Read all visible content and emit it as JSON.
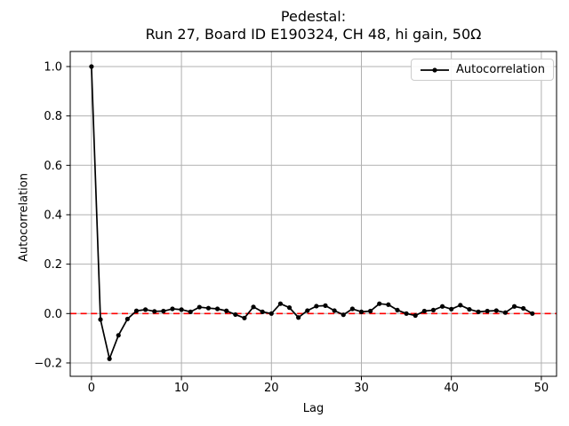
{
  "title": {
    "line1": "Pedestal:",
    "line2": "Run 27, Board ID E190324, CH 48, hi gain, 50Ω"
  },
  "legend": {
    "label": "Autocorrelation",
    "position": "upper right"
  },
  "chart_data": {
    "type": "line",
    "title": "Pedestal:\nRun 27, Board ID E190324, CH 48, hi gain, 50Ω",
    "xlabel": "Lag",
    "ylabel": "Autocorrelation",
    "grid": true,
    "xlim": [
      -2.36,
      51.69
    ],
    "ylim": [
      -0.254,
      1.061
    ],
    "xticks": {
      "values": [
        0,
        10,
        20,
        30,
        40,
        50
      ],
      "labels": [
        "0",
        "10",
        "20",
        "30",
        "40",
        "50"
      ]
    },
    "yticks": {
      "values": [
        -0.2,
        0.0,
        0.2,
        0.4,
        0.6,
        0.8,
        1.0
      ],
      "labels": [
        "−0.2",
        "0.0",
        "0.2",
        "0.4",
        "0.6",
        "0.8",
        "1.0"
      ]
    },
    "x": [
      0,
      1,
      2,
      3,
      4,
      5,
      6,
      7,
      8,
      9,
      10,
      11,
      12,
      13,
      14,
      15,
      16,
      17,
      18,
      19,
      20,
      21,
      22,
      23,
      24,
      25,
      26,
      27,
      28,
      29,
      30,
      31,
      32,
      33,
      34,
      35,
      36,
      37,
      38,
      39,
      40,
      41,
      42,
      43,
      44,
      45,
      46,
      47,
      48,
      49
    ],
    "series": [
      {
        "name": "Autocorrelation",
        "values": [
          1.0,
          -0.024,
          -0.183,
          -0.088,
          -0.022,
          0.011,
          0.016,
          0.009,
          0.01,
          0.019,
          0.016,
          0.007,
          0.026,
          0.022,
          0.019,
          0.011,
          -0.004,
          -0.018,
          0.027,
          0.007,
          0.0,
          0.04,
          0.024,
          -0.016,
          0.012,
          0.03,
          0.032,
          0.012,
          -0.005,
          0.019,
          0.007,
          0.01,
          0.04,
          0.036,
          0.014,
          0.0,
          -0.008,
          0.01,
          0.014,
          0.029,
          0.018,
          0.034,
          0.017,
          0.007,
          0.01,
          0.012,
          0.004,
          0.029,
          0.021,
          0.0
        ]
      }
    ],
    "reference_line": {
      "y": 0.0,
      "color": "#ff0000",
      "style": "dashed"
    },
    "colors": {
      "line": "#000000",
      "marker": "#000000",
      "grid": "#b0b0b0",
      "spine": "#000000",
      "zero_line": "#ff0000"
    }
  }
}
